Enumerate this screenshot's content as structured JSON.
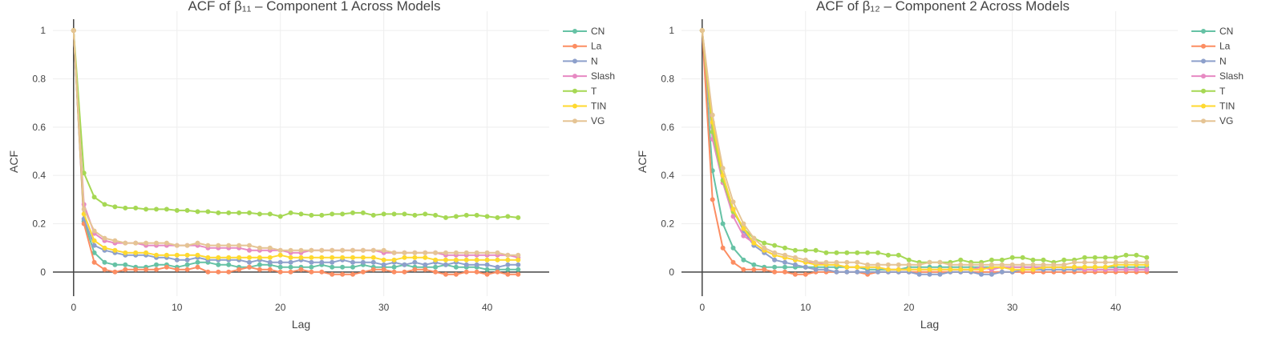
{
  "chart_data": [
    {
      "type": "line",
      "title": "ACF of β₁₁ – Component 1 Across Models",
      "xlabel": "Lag",
      "ylabel": "ACF",
      "xlim": [
        -2,
        46
      ],
      "ylim": [
        -0.1,
        1.08
      ],
      "xticks": [
        0,
        10,
        20,
        30,
        40
      ],
      "yticks": [
        0,
        0.2,
        0.4,
        0.6,
        0.8,
        1
      ],
      "ytick_labels": [
        "0",
        "0.2",
        "0.4",
        "0.6",
        "0.8",
        "1"
      ],
      "grid": true,
      "legend": "right",
      "series": [
        {
          "name": "CN",
          "color": "#66c2a5",
          "values": [
            1,
            0.21,
            0.08,
            0.04,
            0.03,
            0.03,
            0.02,
            0.02,
            0.03,
            0.03,
            0.02,
            0.03,
            0.04,
            0.04,
            0.03,
            0.03,
            0.02,
            0.02,
            0.03,
            0.03,
            0.02,
            0.02,
            0.02,
            0.02,
            0.03,
            0.02,
            0.02,
            0.02,
            0.03,
            0.02,
            0.02,
            0.02,
            0.03,
            0.02,
            0.02,
            0.02,
            0.03,
            0.02,
            0.02,
            0.02,
            0.01,
            0.01,
            0.01,
            0.01
          ]
        },
        {
          "name": "La",
          "color": "#fc8d62",
          "values": [
            1,
            0.2,
            0.04,
            0.01,
            0.0,
            0.01,
            0.01,
            0.01,
            0.01,
            0.02,
            0.01,
            0.01,
            0.02,
            0.0,
            0.0,
            0.0,
            0.01,
            0.02,
            0.01,
            0.01,
            0.0,
            0.0,
            0.01,
            0.0,
            0.0,
            -0.01,
            -0.01,
            -0.01,
            0.0,
            0.01,
            0.01,
            0.0,
            0.0,
            0.01,
            0.01,
            0.0,
            -0.01,
            -0.01,
            0.0,
            0.0,
            -0.01,
            0.0,
            -0.01,
            -0.01
          ]
        },
        {
          "name": "N",
          "color": "#8da0cb",
          "values": [
            1,
            0.22,
            0.11,
            0.09,
            0.08,
            0.07,
            0.07,
            0.07,
            0.06,
            0.06,
            0.05,
            0.05,
            0.06,
            0.05,
            0.05,
            0.05,
            0.05,
            0.04,
            0.05,
            0.04,
            0.04,
            0.04,
            0.05,
            0.04,
            0.04,
            0.04,
            0.05,
            0.04,
            0.04,
            0.04,
            0.03,
            0.04,
            0.03,
            0.04,
            0.03,
            0.04,
            0.03,
            0.04,
            0.03,
            0.03,
            0.03,
            0.02,
            0.03,
            0.03
          ]
        },
        {
          "name": "Slash",
          "color": "#e78ac3",
          "values": [
            1,
            0.28,
            0.16,
            0.13,
            0.12,
            0.12,
            0.12,
            0.11,
            0.11,
            0.11,
            0.11,
            0.11,
            0.11,
            0.1,
            0.1,
            0.1,
            0.1,
            0.09,
            0.09,
            0.09,
            0.09,
            0.08,
            0.08,
            0.09,
            0.09,
            0.09,
            0.09,
            0.09,
            0.09,
            0.09,
            0.08,
            0.08,
            0.08,
            0.08,
            0.08,
            0.08,
            0.07,
            0.07,
            0.07,
            0.07,
            0.07,
            0.07,
            0.07,
            0.06
          ]
        },
        {
          "name": "T",
          "color": "#a6d854",
          "values": [
            1,
            0.41,
            0.31,
            0.28,
            0.27,
            0.265,
            0.265,
            0.26,
            0.26,
            0.26,
            0.255,
            0.255,
            0.25,
            0.25,
            0.245,
            0.245,
            0.245,
            0.245,
            0.24,
            0.24,
            0.23,
            0.245,
            0.24,
            0.235,
            0.235,
            0.24,
            0.24,
            0.245,
            0.245,
            0.235,
            0.24,
            0.24,
            0.24,
            0.235,
            0.24,
            0.235,
            0.225,
            0.23,
            0.235,
            0.235,
            0.23,
            0.225,
            0.23,
            0.225
          ]
        },
        {
          "name": "TIN",
          "color": "#ffd92f",
          "values": [
            1,
            0.24,
            0.13,
            0.1,
            0.09,
            0.08,
            0.08,
            0.08,
            0.07,
            0.07,
            0.07,
            0.07,
            0.07,
            0.06,
            0.06,
            0.06,
            0.06,
            0.06,
            0.06,
            0.06,
            0.07,
            0.06,
            0.06,
            0.06,
            0.06,
            0.06,
            0.06,
            0.06,
            0.06,
            0.06,
            0.05,
            0.05,
            0.06,
            0.06,
            0.06,
            0.05,
            0.05,
            0.05,
            0.05,
            0.05,
            0.05,
            0.05,
            0.05,
            0.05
          ]
        },
        {
          "name": "VG",
          "color": "#e5c494",
          "values": [
            1,
            0.26,
            0.17,
            0.14,
            0.13,
            0.12,
            0.12,
            0.12,
            0.12,
            0.12,
            0.11,
            0.11,
            0.12,
            0.11,
            0.11,
            0.11,
            0.11,
            0.11,
            0.1,
            0.1,
            0.09,
            0.09,
            0.09,
            0.09,
            0.09,
            0.09,
            0.09,
            0.09,
            0.09,
            0.09,
            0.09,
            0.08,
            0.08,
            0.08,
            0.08,
            0.08,
            0.08,
            0.08,
            0.08,
            0.08,
            0.08,
            0.08,
            0.07,
            0.07
          ]
        }
      ]
    },
    {
      "type": "line",
      "title": "ACF of β₁₂ – Component 2 Across Models",
      "xlabel": "Lag",
      "ylabel": "ACF",
      "xlim": [
        -2,
        46
      ],
      "ylim": [
        -0.1,
        1.08
      ],
      "xticks": [
        0,
        10,
        20,
        30,
        40
      ],
      "yticks": [
        0,
        0.2,
        0.4,
        0.6,
        0.8,
        1
      ],
      "ytick_labels": [
        "0",
        "0.2",
        "0.4",
        "0.6",
        "0.8",
        "1"
      ],
      "grid": true,
      "legend": "right",
      "series": [
        {
          "name": "CN",
          "color": "#66c2a5",
          "values": [
            1,
            0.42,
            0.2,
            0.1,
            0.05,
            0.03,
            0.02,
            0.02,
            0.02,
            0.02,
            0.02,
            0.02,
            0.02,
            0.02,
            0.02,
            0.02,
            0.01,
            0.01,
            0.01,
            0.01,
            0.02,
            0.02,
            0.02,
            0.02,
            0.02,
            0.02,
            0.02,
            0.02,
            0.02,
            0.02,
            0.02,
            0.02,
            0.02,
            0.02,
            0.02,
            0.02,
            0.02,
            0.02,
            0.02,
            0.02,
            0.02,
            0.02,
            0.02,
            0.02
          ]
        },
        {
          "name": "La",
          "color": "#fc8d62",
          "values": [
            1,
            0.3,
            0.1,
            0.04,
            0.01,
            0.01,
            0.01,
            0.0,
            0.0,
            -0.01,
            -0.01,
            0.0,
            0.0,
            0.0,
            0.0,
            0.0,
            -0.01,
            0.0,
            0.0,
            0.0,
            0.0,
            0.0,
            0.0,
            0.0,
            0.0,
            0.0,
            0.0,
            0.0,
            0.0,
            0.0,
            0.0,
            0.0,
            0.0,
            0.0,
            0.0,
            0.0,
            0.0,
            0.0,
            0.0,
            0.0,
            0.0,
            0.0,
            0.0,
            0.0
          ]
        },
        {
          "name": "N",
          "color": "#8da0cb",
          "values": [
            1,
            0.6,
            0.4,
            0.26,
            0.17,
            0.11,
            0.08,
            0.05,
            0.04,
            0.03,
            0.02,
            0.01,
            0.01,
            0.0,
            0.0,
            0.0,
            0.0,
            0.0,
            0.0,
            0.0,
            0.0,
            -0.01,
            -0.01,
            -0.01,
            0.0,
            0.0,
            0.0,
            -0.01,
            -0.01,
            0.0,
            0.0,
            0.01,
            0.01,
            0.01,
            0.01,
            0.01,
            0.01,
            0.01,
            0.01,
            0.01,
            0.01,
            0.01,
            0.01,
            0.01
          ]
        },
        {
          "name": "Slash",
          "color": "#e78ac3",
          "values": [
            1,
            0.55,
            0.37,
            0.23,
            0.15,
            0.12,
            0.09,
            0.07,
            0.06,
            0.05,
            0.04,
            0.04,
            0.03,
            0.03,
            0.02,
            0.02,
            0.02,
            0.02,
            0.01,
            0.01,
            0.01,
            0.01,
            0.01,
            0.01,
            0.01,
            0.01,
            0.01,
            0.02,
            0.01,
            0.02,
            0.02,
            0.02,
            0.02,
            0.02,
            0.02,
            0.02,
            0.02,
            0.01,
            0.01,
            0.01,
            0.01,
            0.01,
            0.01,
            0.01
          ]
        },
        {
          "name": "T",
          "color": "#a6d854",
          "values": [
            1,
            0.58,
            0.38,
            0.25,
            0.18,
            0.14,
            0.12,
            0.11,
            0.1,
            0.09,
            0.09,
            0.09,
            0.08,
            0.08,
            0.08,
            0.08,
            0.08,
            0.08,
            0.07,
            0.07,
            0.05,
            0.04,
            0.04,
            0.04,
            0.04,
            0.05,
            0.04,
            0.04,
            0.05,
            0.05,
            0.06,
            0.06,
            0.05,
            0.05,
            0.04,
            0.05,
            0.05,
            0.06,
            0.06,
            0.06,
            0.06,
            0.07,
            0.07,
            0.06
          ]
        },
        {
          "name": "TIN",
          "color": "#ffd92f",
          "values": [
            1,
            0.62,
            0.4,
            0.26,
            0.18,
            0.12,
            0.09,
            0.07,
            0.06,
            0.05,
            0.04,
            0.03,
            0.03,
            0.03,
            0.02,
            0.02,
            0.02,
            0.02,
            0.01,
            0.01,
            0.01,
            0.01,
            0.01,
            0.01,
            0.01,
            0.01,
            0.01,
            0.01,
            0.02,
            0.02,
            0.01,
            0.01,
            0.01,
            0.02,
            0.02,
            0.02,
            0.02,
            0.02,
            0.02,
            0.02,
            0.03,
            0.03,
            0.03,
            0.03
          ]
        },
        {
          "name": "VG",
          "color": "#e5c494",
          "values": [
            1,
            0.65,
            0.43,
            0.29,
            0.2,
            0.14,
            0.1,
            0.08,
            0.07,
            0.06,
            0.05,
            0.04,
            0.04,
            0.04,
            0.04,
            0.04,
            0.03,
            0.03,
            0.03,
            0.03,
            0.03,
            0.03,
            0.04,
            0.04,
            0.03,
            0.03,
            0.03,
            0.03,
            0.03,
            0.03,
            0.03,
            0.03,
            0.03,
            0.03,
            0.03,
            0.03,
            0.04,
            0.04,
            0.04,
            0.04,
            0.04,
            0.04,
            0.04,
            0.04
          ]
        }
      ]
    }
  ]
}
